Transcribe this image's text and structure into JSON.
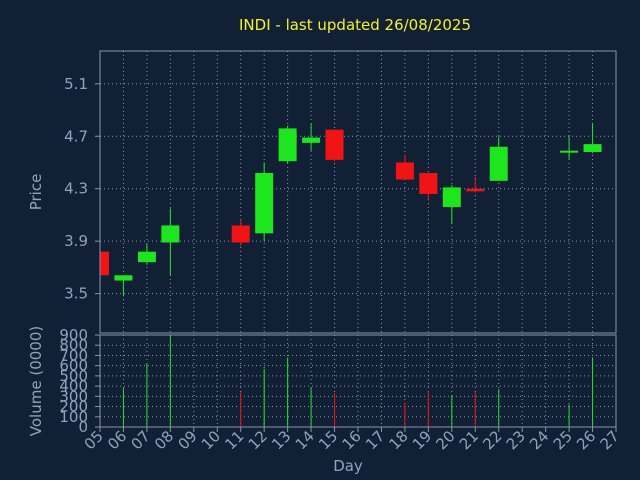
{
  "title": "INDI - last updated 26/08/2025",
  "colors": {
    "background": "#122036",
    "title": "#f2f230",
    "up": "#1ee61e",
    "down": "#f01414",
    "axis": "#8fa3bf",
    "grid": "#8595ad"
  },
  "chart_data": [
    {
      "type": "candlestick",
      "ylabel": "Price",
      "ylim": [
        3.2,
        5.35
      ],
      "yticks": [
        "3.5",
        "3.9",
        "4.3",
        "4.7",
        "5.1"
      ],
      "grid": true,
      "candles": [
        {
          "day": "05",
          "open": 3.82,
          "high": 3.82,
          "low": 3.63,
          "close": 3.64
        },
        {
          "day": "06",
          "open": 3.6,
          "high": 3.63,
          "low": 3.48,
          "close": 3.64
        },
        {
          "day": "07",
          "open": 3.74,
          "high": 3.88,
          "low": 3.72,
          "close": 3.82
        },
        {
          "day": "08",
          "open": 3.89,
          "high": 4.15,
          "low": 3.64,
          "close": 4.02
        },
        {
          "day": "11",
          "open": 4.02,
          "high": 4.06,
          "low": 3.86,
          "close": 3.89
        },
        {
          "day": "12",
          "open": 3.96,
          "high": 4.5,
          "low": 3.9,
          "close": 4.42
        },
        {
          "day": "13",
          "open": 4.51,
          "high": 4.78,
          "low": 4.49,
          "close": 4.76
        },
        {
          "day": "14",
          "open": 4.65,
          "high": 4.8,
          "low": 4.59,
          "close": 4.69
        },
        {
          "day": "15",
          "open": 4.75,
          "high": 4.75,
          "low": 4.51,
          "close": 4.52
        },
        {
          "day": "18",
          "open": 4.5,
          "high": 4.56,
          "low": 4.37,
          "close": 4.37
        },
        {
          "day": "19",
          "open": 4.42,
          "high": 4.42,
          "low": 4.21,
          "close": 4.26
        },
        {
          "day": "20",
          "open": 4.16,
          "high": 4.33,
          "low": 4.03,
          "close": 4.31
        },
        {
          "day": "21",
          "open": 4.3,
          "high": 4.39,
          "low": 4.27,
          "close": 4.28
        },
        {
          "day": "22",
          "open": 4.36,
          "high": 4.7,
          "low": 4.36,
          "close": 4.62
        },
        {
          "day": "25",
          "open": 4.58,
          "high": 4.7,
          "low": 4.52,
          "close": 4.59
        },
        {
          "day": "26",
          "open": 4.58,
          "high": 4.8,
          "low": 4.57,
          "close": 4.64
        }
      ]
    },
    {
      "type": "bar",
      "ylabel": "Volume (0000)",
      "xlabel": "Day",
      "ylim": [
        0,
        900
      ],
      "yticks": [
        "0",
        "100",
        "200",
        "300",
        "400",
        "500",
        "600",
        "700",
        "800",
        "900"
      ],
      "grid": true,
      "categories": [
        "05",
        "06",
        "07",
        "08",
        "09",
        "10",
        "11",
        "12",
        "13",
        "14",
        "15",
        "16",
        "17",
        "18",
        "19",
        "20",
        "21",
        "22",
        "23",
        "24",
        "25",
        "26",
        "27"
      ],
      "values": [
        0,
        380,
        620,
        900,
        0,
        0,
        340,
        570,
        680,
        390,
        330,
        0,
        0,
        240,
        350,
        310,
        340,
        370,
        0,
        0,
        220,
        680,
        0
      ],
      "direction": [
        "",
        "up",
        "up",
        "up",
        "",
        "",
        "down",
        "up",
        "up",
        "up",
        "down",
        "",
        "",
        "down",
        "down",
        "up",
        "down",
        "up",
        "",
        "",
        "up",
        "up",
        ""
      ]
    }
  ]
}
